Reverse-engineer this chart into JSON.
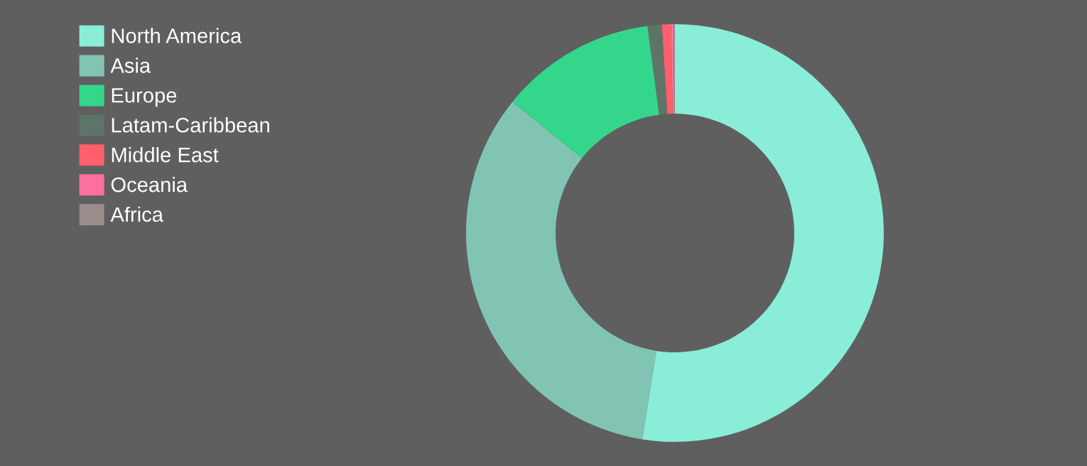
{
  "chart_data": {
    "type": "donut",
    "categories": [
      "North America",
      "Asia",
      "Europe",
      "Latam-Caribbean",
      "Middle East",
      "Oceania",
      "Africa"
    ],
    "values": [
      52.5,
      33.3,
      12.1,
      1.1,
      0.7,
      0.2,
      0.1
    ],
    "colors": [
      "#8aedd8",
      "#82c4b4",
      "#34d68c",
      "#5f7468",
      "#ff5f6a",
      "#fd6f9c",
      "#998c8b"
    ],
    "legend": "top left"
  }
}
